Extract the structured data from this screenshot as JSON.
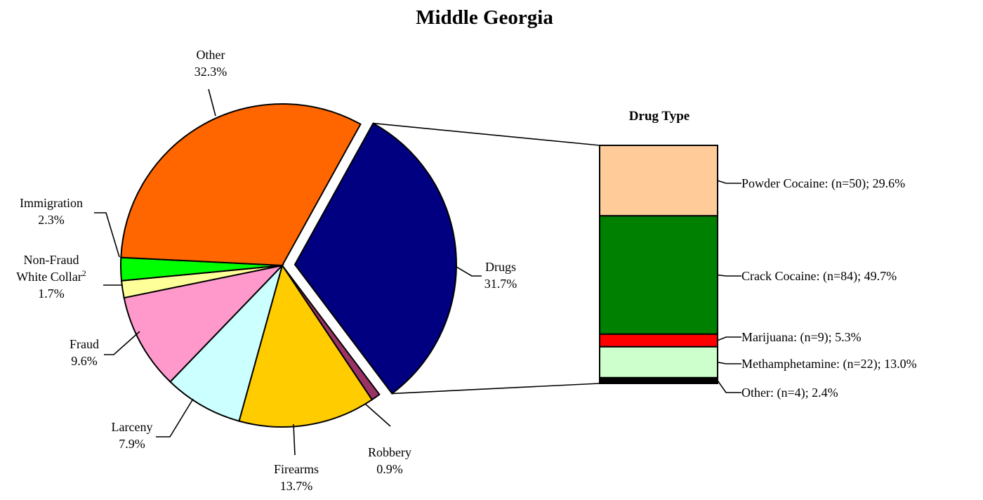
{
  "chart_data": {
    "type": "pie",
    "title": "Middle Georgia",
    "pie": {
      "slices": [
        {
          "key": "drugs",
          "name_lines": [
            "Drugs"
          ],
          "value": 31.7,
          "label": "31.7%",
          "color": "#000080",
          "exploded": true
        },
        {
          "key": "robbery",
          "name_lines": [
            "Robbery"
          ],
          "value": 0.9,
          "label": "0.9%",
          "color": "#993366"
        },
        {
          "key": "firearms",
          "name_lines": [
            "Firearms"
          ],
          "value": 13.7,
          "label": "13.7%",
          "color": "#FFCC00"
        },
        {
          "key": "larceny",
          "name_lines": [
            "Larceny"
          ],
          "value": 7.9,
          "label": "7.9%",
          "color": "#CCFFFF"
        },
        {
          "key": "fraud",
          "name_lines": [
            "Fraud"
          ],
          "value": 9.6,
          "label": "9.6%",
          "color": "#FF99CC"
        },
        {
          "key": "nonfraud",
          "name_lines": [
            "Non-Fraud",
            "White Collar"
          ],
          "superscript": "2",
          "value": 1.7,
          "label": "1.7%",
          "color": "#FFFF99"
        },
        {
          "key": "immigration",
          "name_lines": [
            "Immigration"
          ],
          "value": 2.3,
          "label": "2.3%",
          "color": "#00FF00"
        },
        {
          "key": "other",
          "name_lines": [
            "Other"
          ],
          "value": 32.3,
          "label": "32.3%",
          "color": "#FF6600"
        }
      ]
    },
    "breakdown": {
      "title": "Drug Type",
      "type": "stacked-bar",
      "segments": [
        {
          "key": "powder",
          "name": "Powder Cocaine",
          "n": 50,
          "value": 29.6,
          "label": "Powder Cocaine: (n=50); 29.6%",
          "color": "#FFCC99"
        },
        {
          "key": "crack",
          "name": "Crack Cocaine",
          "n": 84,
          "value": 49.7,
          "label": "Crack Cocaine: (n=84); 49.7%",
          "color": "#008000"
        },
        {
          "key": "mari",
          "name": "Marijuana",
          "n": 9,
          "value": 5.3,
          "label": "Marijuana: (n=9); 5.3%",
          "color": "#FF0000"
        },
        {
          "key": "meth",
          "name": "Methamphetamine",
          "n": 22,
          "value": 13.0,
          "label": "Methamphetamine: (n=22); 13.0%",
          "color": "#CCFFCC"
        },
        {
          "key": "other",
          "name": "Other",
          "n": 4,
          "value": 2.4,
          "label": "Other: (n=4); 2.4%",
          "color": "#000000"
        }
      ]
    }
  }
}
